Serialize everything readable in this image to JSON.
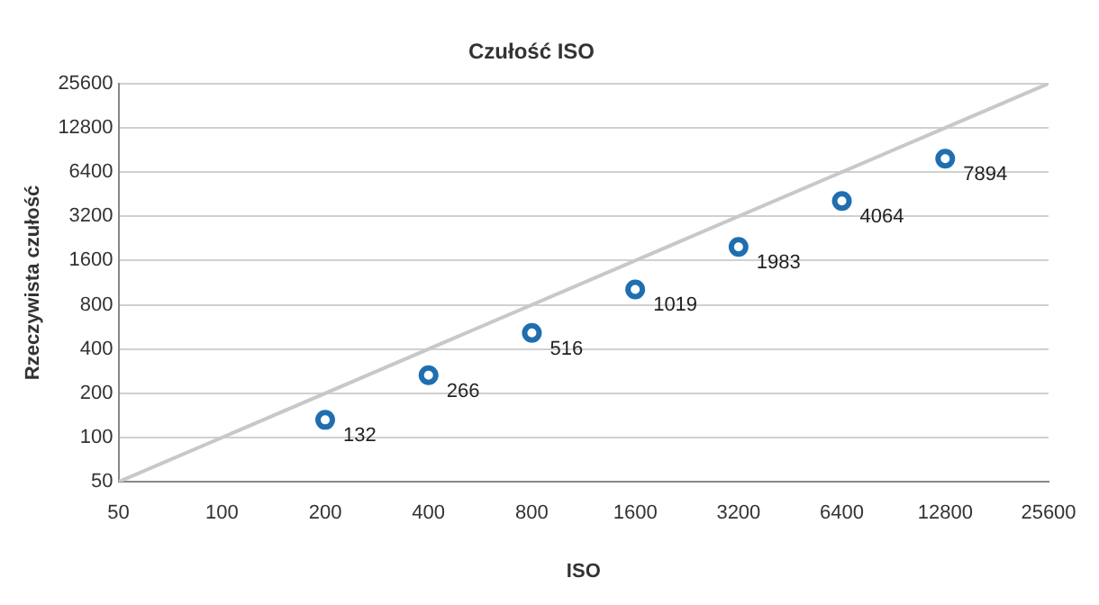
{
  "chart_data": {
    "type": "scatter",
    "title": "Czułość ISO",
    "xlabel": "ISO",
    "ylabel": "Rzeczywista czułość",
    "log": "xy",
    "grid": "y",
    "xlim": [
      50,
      25600
    ],
    "xticks": [
      50,
      100,
      200,
      400,
      800,
      1600,
      3200,
      6400,
      12800,
      25600
    ],
    "ylim": [
      50,
      25600
    ],
    "yticks": [
      50,
      100,
      200,
      400,
      800,
      1600,
      3200,
      6400,
      12800,
      25600
    ],
    "series": [
      {
        "type": "line",
        "color": "#c8c8c8",
        "x": [
          50,
          25600
        ],
        "values": [
          50,
          25600
        ],
        "marker": "none"
      },
      {
        "color": "#1f6fb0",
        "x": [
          200,
          400,
          800,
          1600,
          3200,
          6400,
          12800
        ],
        "values": [
          132,
          266,
          516,
          1019,
          1983,
          4064,
          7894
        ],
        "value_labels": [
          "132",
          "266",
          "516",
          "1019",
          "1983",
          "4064",
          "7894"
        ],
        "marker": "circle"
      }
    ]
  }
}
